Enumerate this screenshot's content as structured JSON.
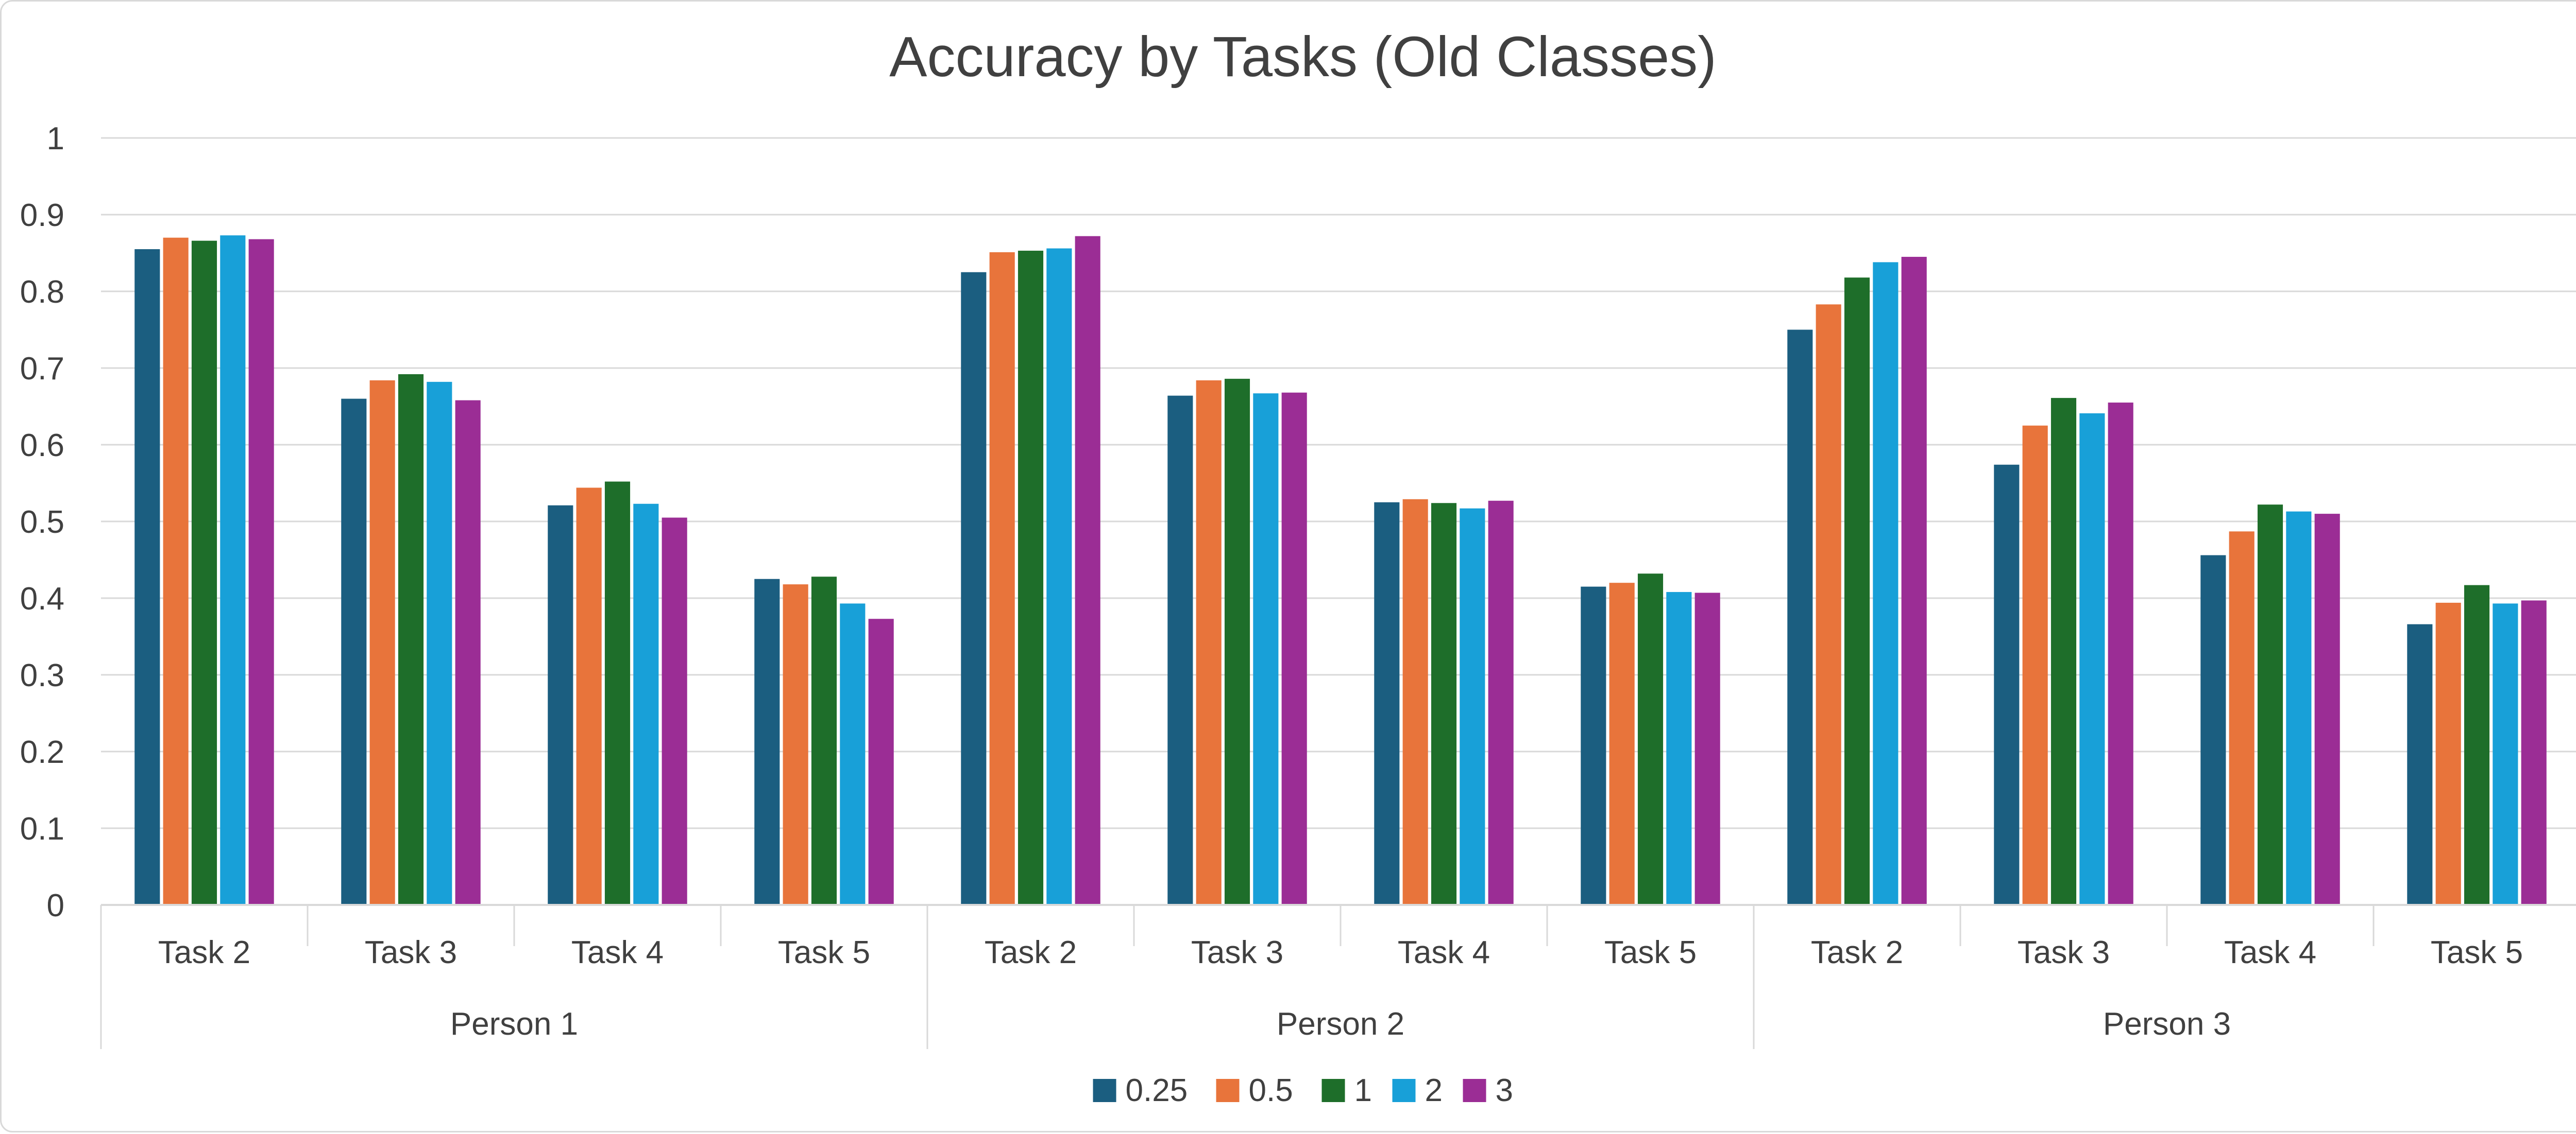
{
  "chart_data": {
    "type": "bar",
    "title": "Accuracy by Tasks (Old Classes)",
    "xlabel": "",
    "ylabel": "",
    "ylim": [
      0,
      1
    ],
    "yticks": [
      "0",
      "0.1",
      "0.2",
      "0.3",
      "0.4",
      "0.5",
      "0.6",
      "0.7",
      "0.8",
      "0.9",
      "1"
    ],
    "grid": true,
    "legend_position": "bottom",
    "groups": [
      "Person 1",
      "Person 2",
      "Person 3"
    ],
    "categories": [
      "Task 2",
      "Task 3",
      "Task 4",
      "Task 5",
      "Task 2",
      "Task 3",
      "Task 4",
      "Task 5",
      "Task 2",
      "Task 3",
      "Task 4",
      "Task 5"
    ],
    "series": [
      {
        "name": "0.25",
        "color": "#1b5e80",
        "values": [
          0.855,
          0.66,
          0.521,
          0.425,
          0.825,
          0.664,
          0.525,
          0.415,
          0.75,
          0.574,
          0.456,
          0.366
        ]
      },
      {
        "name": "0.5",
        "color": "#e8743b",
        "values": [
          0.87,
          0.684,
          0.544,
          0.418,
          0.851,
          0.684,
          0.529,
          0.42,
          0.783,
          0.625,
          0.487,
          0.394
        ]
      },
      {
        "name": "1",
        "color": "#1e6e2a",
        "values": [
          0.866,
          0.692,
          0.552,
          0.428,
          0.853,
          0.686,
          0.524,
          0.432,
          0.818,
          0.661,
          0.522,
          0.417
        ]
      },
      {
        "name": "2",
        "color": "#18a0d8",
        "values": [
          0.873,
          0.682,
          0.523,
          0.393,
          0.856,
          0.667,
          0.517,
          0.408,
          0.838,
          0.641,
          0.513,
          0.393
        ]
      },
      {
        "name": "3",
        "color": "#9b2d95",
        "values": [
          0.868,
          0.658,
          0.505,
          0.373,
          0.872,
          0.668,
          0.527,
          0.407,
          0.845,
          0.655,
          0.51,
          0.397
        ]
      }
    ]
  }
}
